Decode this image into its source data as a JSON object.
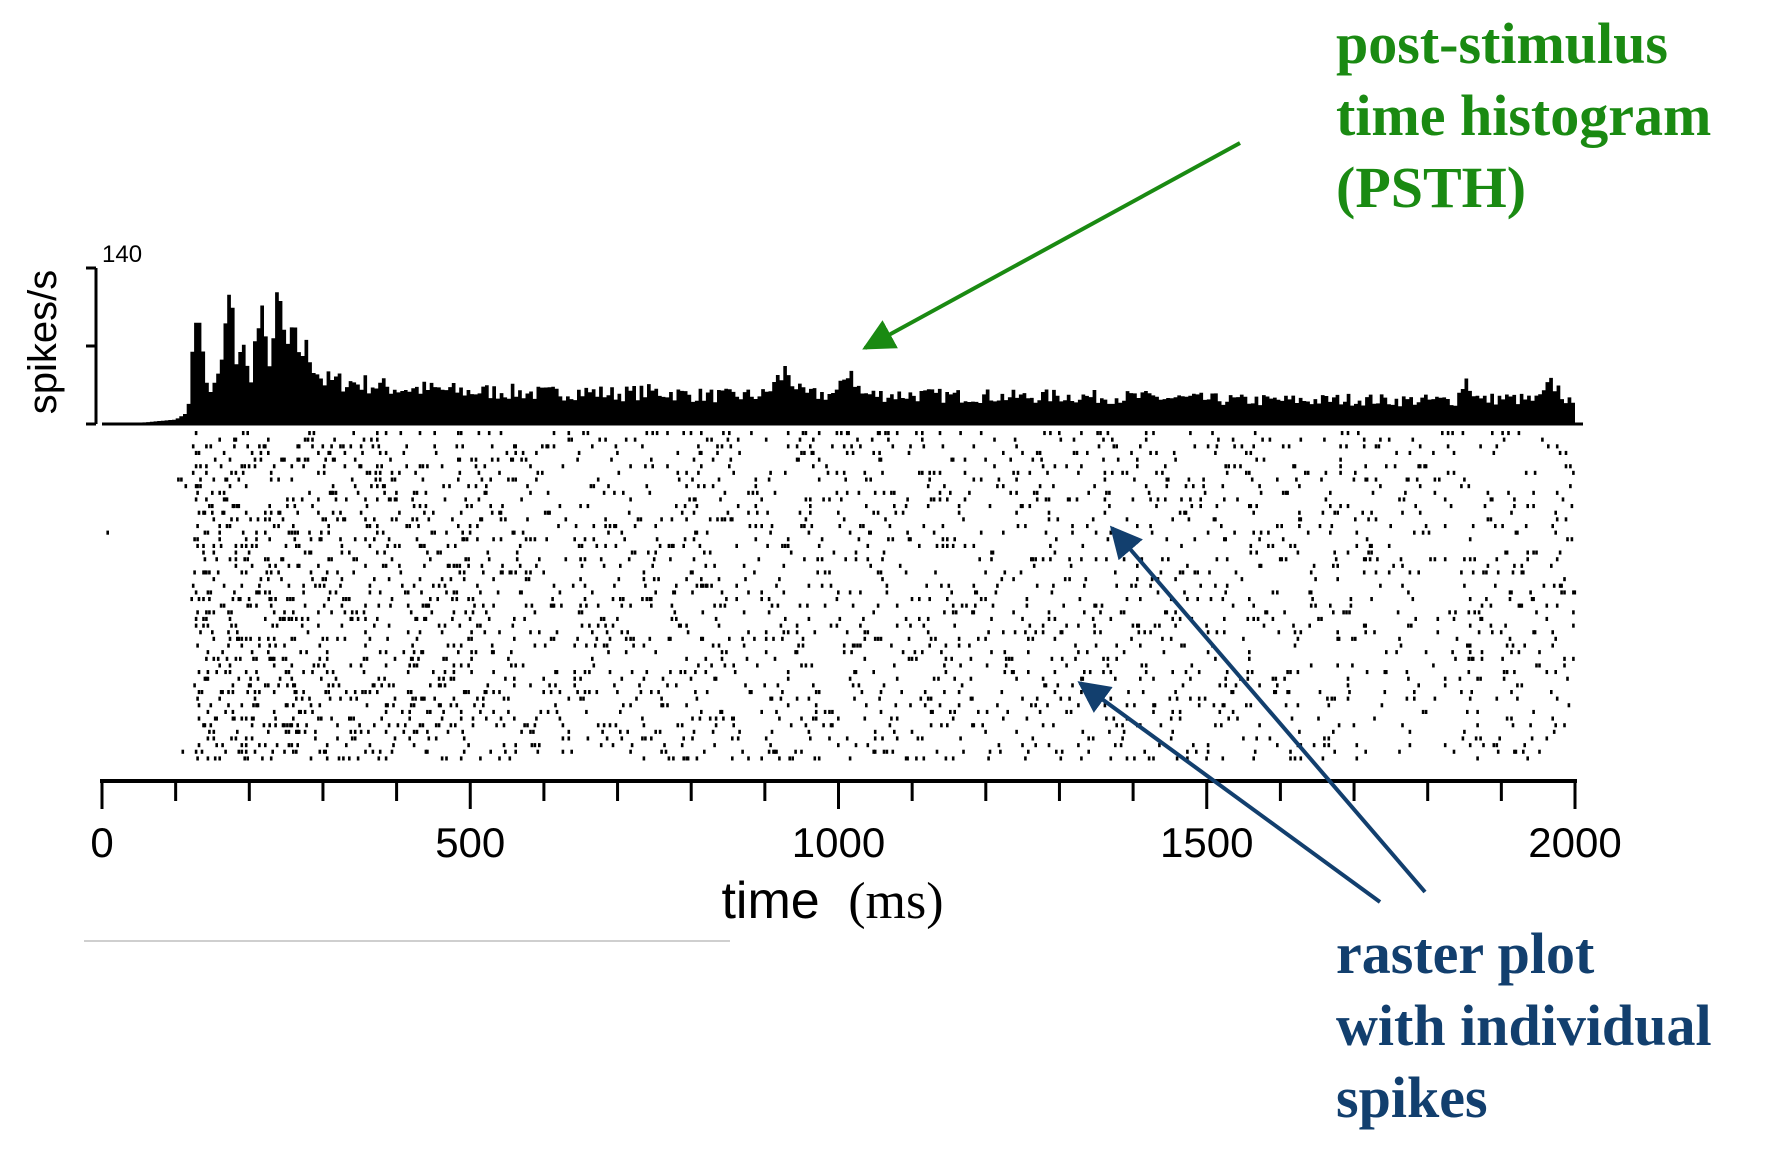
{
  "chart_data": {
    "type": "bar",
    "panels": [
      "histogram",
      "raster"
    ],
    "x": {
      "label": "time",
      "unit": "(ms)",
      "lim": [
        0,
        2000
      ],
      "major_ticks": [
        0,
        500,
        1000,
        1500,
        2000
      ],
      "minor_step": 100,
      "tick_labels": [
        "0",
        "500",
        "1000",
        "1500",
        "2000"
      ]
    },
    "psth": {
      "ylabel": "spikes/s",
      "ymax_label": "140",
      "ylim": [
        0,
        140
      ],
      "y_ticks": [
        0,
        70,
        140
      ],
      "bin_ms": 5,
      "envelope_ms": [
        0,
        50,
        100,
        115,
        125,
        130,
        135,
        140,
        150,
        160,
        175,
        180,
        190,
        200,
        215,
        225,
        235,
        240,
        250,
        260,
        270,
        280,
        290,
        300,
        350,
        400,
        450,
        500,
        550,
        600,
        650,
        700,
        750,
        800,
        850,
        900,
        930,
        950,
        1000,
        1015,
        1030,
        1050,
        1100,
        1150,
        1200,
        1250,
        1300,
        1350,
        1400,
        1450,
        1500,
        1550,
        1600,
        1650,
        1700,
        1750,
        1800,
        1840,
        1850,
        1870,
        1900,
        1950,
        1970,
        2000
      ],
      "envelope_rate": [
        0,
        1,
        4,
        10,
        70,
        140,
        80,
        40,
        30,
        45,
        125,
        60,
        75,
        40,
        100,
        60,
        85,
        115,
        70,
        75,
        70,
        65,
        55,
        40,
        38,
        33,
        32,
        30,
        30,
        28,
        30,
        28,
        30,
        27,
        26,
        27,
        50,
        27,
        28,
        55,
        28,
        27,
        27,
        26,
        26,
        25,
        26,
        25,
        25,
        24,
        23,
        22,
        22,
        22,
        23,
        22,
        22,
        22,
        43,
        22,
        24,
        22,
        38,
        14
      ]
    },
    "raster": {
      "trials": 50,
      "stimulus_onset_ms": 125,
      "rate_profile_ms": [
        0,
        120,
        125,
        300,
        600,
        1000,
        1500,
        2000
      ],
      "rate_profile_hz": [
        0.4,
        0.4,
        65,
        45,
        32,
        27,
        24,
        22
      ]
    }
  },
  "annotations": {
    "psth": [
      "post-stimulus",
      "time histogram",
      "(PSTH)"
    ],
    "raster": [
      "raster plot",
      "with individual",
      "spikes"
    ]
  },
  "colors": {
    "psth_annotation": "#1a8a12",
    "raster_annotation": "#123f6e",
    "ink": "#000000"
  }
}
